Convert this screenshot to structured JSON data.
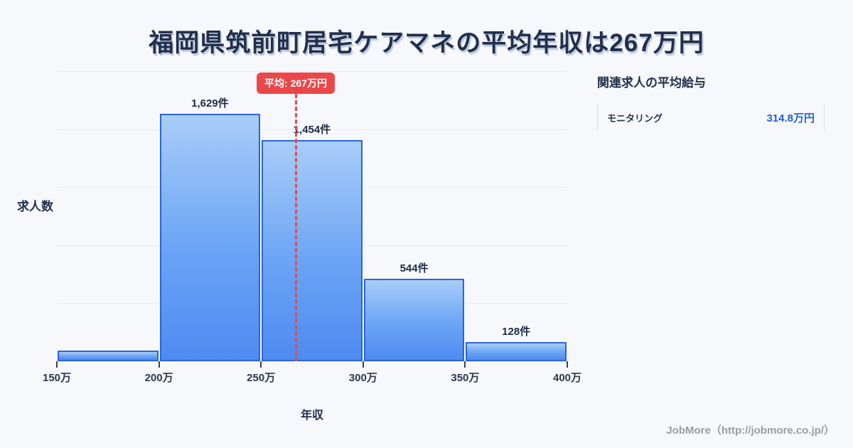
{
  "title": "福岡県筑前町居宅ケアマネの平均年収は267万円",
  "chart_data": {
    "type": "bar",
    "subtype": "histogram",
    "title": "福岡県筑前町居宅ケアマネの平均年収は267万円",
    "xlabel": "年収",
    "ylabel": "求人数",
    "x_ticks": [
      "150万",
      "200万",
      "250万",
      "300万",
      "350万",
      "400万"
    ],
    "bin_edges_manyen": [
      150,
      200,
      250,
      300,
      350,
      400
    ],
    "categories": [
      "150万-200万",
      "200万-250万",
      "250万-300万",
      "300万-350万",
      "350万-400万"
    ],
    "values": [
      70,
      1629,
      1454,
      544,
      128
    ],
    "values_estimated": [
      true,
      false,
      false,
      false,
      false
    ],
    "bar_labels": [
      "",
      "1,629件",
      "1,454件",
      "544件",
      "128件"
    ],
    "mean_manyen": 267,
    "mean_label": "平均: 267万円",
    "xlim_manyen": [
      150,
      400
    ],
    "ylim": [
      0,
      1910
    ],
    "grid": "horizontal",
    "legend": "none",
    "colors": {
      "bar_fill_top": "#a8cdf9",
      "bar_fill_bottom": "#4e8bf2",
      "bar_border": "#2b65d8",
      "mean_accent": "#e9474a",
      "value_blue": "#2360dd",
      "text_navy": "#222f4c",
      "background": "#f7f8fb"
    }
  },
  "side_panel": {
    "heading": "関連求人の平均給与",
    "rows": [
      {
        "label": "モニタリング",
        "value": "314.8万円"
      }
    ]
  },
  "footer": {
    "credit": "JobMore（http://jobmore.co.jp/）"
  }
}
